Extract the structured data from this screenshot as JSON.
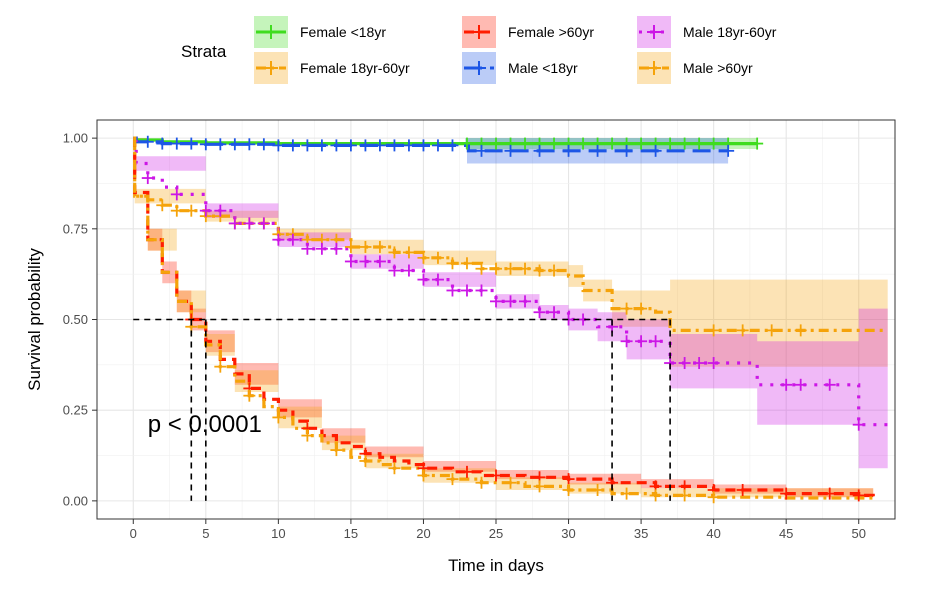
{
  "chart_data": {
    "type": "line",
    "subtype": "kaplan-meier survival curve",
    "title": "",
    "xlabel": "Time in days",
    "ylabel": "Survival probability",
    "xlim": [
      -2.5,
      52.5
    ],
    "ylim": [
      -0.05,
      1.05
    ],
    "x_ticks": [
      0,
      5,
      10,
      15,
      20,
      25,
      30,
      35,
      40,
      45,
      50
    ],
    "y_ticks": [
      0.0,
      0.25,
      0.5,
      0.75,
      1.0
    ],
    "x_tick_labels": [
      "0",
      "5",
      "10",
      "15",
      "20",
      "25",
      "30",
      "35",
      "40",
      "45",
      "50"
    ],
    "y_tick_labels": [
      "0.00",
      "0.25",
      "0.50",
      "0.75",
      "1.00"
    ],
    "grid": true,
    "legend": {
      "title": "Strata",
      "position": "top"
    },
    "annotation": {
      "text": "p < 0.0001",
      "x": 1,
      "y": 0.19
    },
    "median_lines": {
      "y": 0.5,
      "x": [
        4,
        5,
        33,
        37
      ]
    },
    "series": [
      {
        "name": "Female <18yr",
        "color": "#3fdc1f",
        "dash": "solid",
        "censor_color": "#3fdc1f",
        "points": [
          [
            0,
            1.0
          ],
          [
            0.1,
            0.995
          ],
          [
            2,
            0.99
          ],
          [
            5,
            0.987
          ],
          [
            10,
            0.985
          ],
          [
            20,
            0.985
          ],
          [
            23,
            0.985
          ],
          [
            43,
            0.985
          ]
        ],
        "ci_lower": [
          [
            0,
            1.0
          ],
          [
            22.9,
            0.985
          ],
          [
            23,
            0.97
          ],
          [
            43,
            0.97
          ]
        ],
        "ci_upper": [
          [
            0,
            1.0
          ],
          [
            43,
            1.0
          ]
        ],
        "censors": [
          23,
          24,
          25,
          26,
          27,
          28,
          29,
          30,
          31,
          32,
          33,
          34,
          35,
          36,
          37,
          38,
          39,
          40,
          41,
          43
        ]
      },
      {
        "name": "Female 18yr-60yr",
        "color": "#f5a30a",
        "dash": "dashdot",
        "censor_color": "#f5a30a",
        "points": [
          [
            0,
            0.99
          ],
          [
            0.1,
            0.84
          ],
          [
            1,
            0.83
          ],
          [
            2,
            0.815
          ],
          [
            3,
            0.8
          ],
          [
            5,
            0.785
          ],
          [
            7,
            0.765
          ],
          [
            10,
            0.735
          ],
          [
            12,
            0.72
          ],
          [
            15,
            0.7
          ],
          [
            18,
            0.685
          ],
          [
            20,
            0.67
          ],
          [
            22,
            0.655
          ],
          [
            24,
            0.64
          ],
          [
            28,
            0.635
          ],
          [
            30,
            0.62
          ],
          [
            31,
            0.58
          ],
          [
            33,
            0.53
          ],
          [
            36,
            0.52
          ],
          [
            37,
            0.47
          ],
          [
            52,
            0.47
          ]
        ],
        "ci_lower": [
          [
            0,
            0.98
          ],
          [
            0.1,
            0.82
          ],
          [
            5,
            0.77
          ],
          [
            10,
            0.72
          ],
          [
            15,
            0.68
          ],
          [
            20,
            0.65
          ],
          [
            25,
            0.62
          ],
          [
            30,
            0.59
          ],
          [
            31,
            0.55
          ],
          [
            33,
            0.48
          ],
          [
            37,
            0.37
          ],
          [
            52,
            0.37
          ]
        ],
        "ci_upper": [
          [
            0,
            1.0
          ],
          [
            0.1,
            0.86
          ],
          [
            5,
            0.8
          ],
          [
            10,
            0.75
          ],
          [
            15,
            0.72
          ],
          [
            20,
            0.69
          ],
          [
            25,
            0.66
          ],
          [
            30,
            0.65
          ],
          [
            31,
            0.61
          ],
          [
            33,
            0.58
          ],
          [
            37,
            0.61
          ],
          [
            52,
            0.61
          ]
        ],
        "censors": [
          2,
          3,
          4,
          5,
          6,
          7,
          8,
          9,
          10,
          11,
          12,
          13,
          14,
          15,
          16,
          17,
          18,
          19,
          20,
          21,
          22,
          23,
          24,
          25,
          26,
          27,
          28,
          29,
          34,
          35,
          40,
          42,
          44,
          46
        ]
      },
      {
        "name": "Female >60yr",
        "color": "#ff1c00",
        "dash": "dash",
        "censor_color": "#ff1c00",
        "points": [
          [
            0,
            1.0
          ],
          [
            0.1,
            0.85
          ],
          [
            1,
            0.72
          ],
          [
            2,
            0.63
          ],
          [
            3,
            0.55
          ],
          [
            4,
            0.5
          ],
          [
            5,
            0.44
          ],
          [
            6,
            0.39
          ],
          [
            7,
            0.35
          ],
          [
            8,
            0.31
          ],
          [
            9,
            0.28
          ],
          [
            10,
            0.25
          ],
          [
            11,
            0.22
          ],
          [
            12,
            0.2
          ],
          [
            13,
            0.18
          ],
          [
            14,
            0.16
          ],
          [
            15,
            0.15
          ],
          [
            16,
            0.13
          ],
          [
            17,
            0.12
          ],
          [
            18,
            0.11
          ],
          [
            19,
            0.1
          ],
          [
            20,
            0.09
          ],
          [
            22,
            0.08
          ],
          [
            24,
            0.07
          ],
          [
            27,
            0.065
          ],
          [
            30,
            0.06
          ],
          [
            33,
            0.05
          ],
          [
            36,
            0.04
          ],
          [
            40,
            0.03
          ],
          [
            45,
            0.02
          ],
          [
            50,
            0.015
          ],
          [
            51,
            0.0
          ]
        ],
        "ci_lower": [
          [
            0,
            0.99
          ],
          [
            1,
            0.69
          ],
          [
            2,
            0.6
          ],
          [
            3,
            0.52
          ],
          [
            4,
            0.47
          ],
          [
            5,
            0.41
          ],
          [
            7,
            0.32
          ],
          [
            10,
            0.23
          ],
          [
            13,
            0.16
          ],
          [
            16,
            0.12
          ],
          [
            20,
            0.08
          ],
          [
            25,
            0.06
          ],
          [
            30,
            0.045
          ],
          [
            35,
            0.035
          ],
          [
            40,
            0.02
          ],
          [
            45,
            0.01
          ],
          [
            51,
            0.0
          ]
        ],
        "ci_upper": [
          [
            0,
            1.0
          ],
          [
            1,
            0.75
          ],
          [
            2,
            0.66
          ],
          [
            3,
            0.58
          ],
          [
            4,
            0.53
          ],
          [
            5,
            0.47
          ],
          [
            7,
            0.38
          ],
          [
            10,
            0.28
          ],
          [
            13,
            0.2
          ],
          [
            16,
            0.15
          ],
          [
            20,
            0.11
          ],
          [
            25,
            0.085
          ],
          [
            30,
            0.075
          ],
          [
            35,
            0.06
          ],
          [
            40,
            0.045
          ],
          [
            45,
            0.035
          ],
          [
            51,
            0.03
          ]
        ],
        "censors": [
          4,
          8,
          12,
          16,
          20,
          23,
          25,
          28,
          30,
          33,
          36,
          38,
          40,
          42,
          45,
          48,
          50
        ]
      },
      {
        "name": "Male <18yr",
        "color": "#1d56e6",
        "dash": "longdash",
        "censor_color": "#1d56e6",
        "points": [
          [
            0,
            1.0
          ],
          [
            0.2,
            0.99
          ],
          [
            2,
            0.985
          ],
          [
            5,
            0.983
          ],
          [
            10,
            0.98
          ],
          [
            20,
            0.98
          ],
          [
            23,
            0.98
          ],
          [
            23.1,
            0.965
          ],
          [
            41,
            0.965
          ]
        ],
        "ci_lower": [
          [
            0,
            1.0
          ],
          [
            22.9,
            0.97
          ],
          [
            23,
            0.93
          ],
          [
            41,
            0.93
          ]
        ],
        "ci_upper": [
          [
            0,
            1.0
          ],
          [
            41,
            0.995
          ]
        ],
        "censors": [
          1,
          2,
          3,
          4,
          5,
          6,
          7,
          8,
          9,
          10,
          11,
          12,
          13,
          14,
          15,
          16,
          17,
          18,
          19,
          20,
          21,
          22,
          24,
          26,
          28,
          30,
          32,
          34,
          36,
          41
        ]
      },
      {
        "name": "Male 18yr-60yr",
        "color": "#cc16e6",
        "dash": "dot",
        "censor_color": "#cc16e6",
        "points": [
          [
            0,
            0.99
          ],
          [
            0.2,
            0.93
          ],
          [
            1,
            0.89
          ],
          [
            2,
            0.865
          ],
          [
            3,
            0.845
          ],
          [
            5,
            0.8
          ],
          [
            7,
            0.765
          ],
          [
            10,
            0.72
          ],
          [
            12,
            0.695
          ],
          [
            15,
            0.66
          ],
          [
            18,
            0.635
          ],
          [
            20,
            0.61
          ],
          [
            22,
            0.58
          ],
          [
            25,
            0.55
          ],
          [
            28,
            0.52
          ],
          [
            30,
            0.5
          ],
          [
            32,
            0.48
          ],
          [
            34,
            0.44
          ],
          [
            37,
            0.38
          ],
          [
            43,
            0.32
          ],
          [
            50,
            0.21
          ],
          [
            52,
            0.21
          ]
        ],
        "ci_lower": [
          [
            0,
            0.98
          ],
          [
            0.2,
            0.91
          ],
          [
            5,
            0.78
          ],
          [
            10,
            0.7
          ],
          [
            15,
            0.64
          ],
          [
            20,
            0.59
          ],
          [
            25,
            0.53
          ],
          [
            28,
            0.5
          ],
          [
            30,
            0.47
          ],
          [
            32,
            0.44
          ],
          [
            34,
            0.39
          ],
          [
            37,
            0.31
          ],
          [
            43,
            0.21
          ],
          [
            50,
            0.09
          ],
          [
            52,
            0.09
          ]
        ],
        "ci_upper": [
          [
            0,
            1.0
          ],
          [
            0.2,
            0.95
          ],
          [
            5,
            0.82
          ],
          [
            10,
            0.74
          ],
          [
            15,
            0.68
          ],
          [
            20,
            0.63
          ],
          [
            25,
            0.57
          ],
          [
            28,
            0.54
          ],
          [
            30,
            0.53
          ],
          [
            32,
            0.52
          ],
          [
            34,
            0.5
          ],
          [
            37,
            0.46
          ],
          [
            43,
            0.44
          ],
          [
            50,
            0.53
          ],
          [
            52,
            0.53
          ]
        ],
        "censors": [
          1,
          3,
          5,
          6,
          7,
          8,
          9,
          10,
          11,
          12,
          13,
          14,
          15,
          16,
          17,
          18,
          19,
          20,
          21,
          22,
          23,
          24,
          25,
          26,
          27,
          28,
          29,
          30,
          31,
          33,
          34,
          35,
          36,
          37,
          38,
          39,
          40,
          45,
          46,
          48,
          50
        ]
      },
      {
        "name": "Male >60yr",
        "color": "#f5a30a",
        "dash": "dashdot",
        "censor_color": "#f5a30a",
        "points": [
          [
            0,
            1.0
          ],
          [
            0.1,
            0.84
          ],
          [
            1,
            0.72
          ],
          [
            2,
            0.63
          ],
          [
            3,
            0.55
          ],
          [
            4,
            0.48
          ],
          [
            5,
            0.43
          ],
          [
            6,
            0.37
          ],
          [
            7,
            0.33
          ],
          [
            8,
            0.29
          ],
          [
            9,
            0.26
          ],
          [
            10,
            0.23
          ],
          [
            11,
            0.2
          ],
          [
            12,
            0.18
          ],
          [
            13,
            0.16
          ],
          [
            14,
            0.14
          ],
          [
            15,
            0.12
          ],
          [
            16,
            0.11
          ],
          [
            17,
            0.1
          ],
          [
            18,
            0.09
          ],
          [
            20,
            0.07
          ],
          [
            22,
            0.06
          ],
          [
            24,
            0.05
          ],
          [
            27,
            0.04
          ],
          [
            30,
            0.03
          ],
          [
            33,
            0.02
          ],
          [
            36,
            0.015
          ],
          [
            40,
            0.01
          ],
          [
            45,
            0.008
          ],
          [
            51,
            0.005
          ]
        ],
        "ci_lower": [
          [
            0,
            0.99
          ],
          [
            1,
            0.69
          ],
          [
            3,
            0.52
          ],
          [
            5,
            0.4
          ],
          [
            7,
            0.3
          ],
          [
            10,
            0.2
          ],
          [
            13,
            0.14
          ],
          [
            16,
            0.09
          ],
          [
            20,
            0.05
          ],
          [
            25,
            0.03
          ],
          [
            30,
            0.02
          ],
          [
            35,
            0.01
          ],
          [
            51,
            0.0
          ]
        ],
        "ci_upper": [
          [
            0,
            1.0
          ],
          [
            1,
            0.75
          ],
          [
            3,
            0.58
          ],
          [
            5,
            0.46
          ],
          [
            7,
            0.36
          ],
          [
            10,
            0.26
          ],
          [
            13,
            0.18
          ],
          [
            16,
            0.13
          ],
          [
            20,
            0.09
          ],
          [
            25,
            0.065
          ],
          [
            30,
            0.05
          ],
          [
            35,
            0.035
          ],
          [
            51,
            0.02
          ]
        ],
        "censors": [
          4,
          6,
          8,
          10,
          12,
          14,
          16,
          18,
          20,
          22,
          24,
          26,
          28,
          30,
          32,
          34,
          36,
          38,
          40
        ]
      }
    ]
  }
}
